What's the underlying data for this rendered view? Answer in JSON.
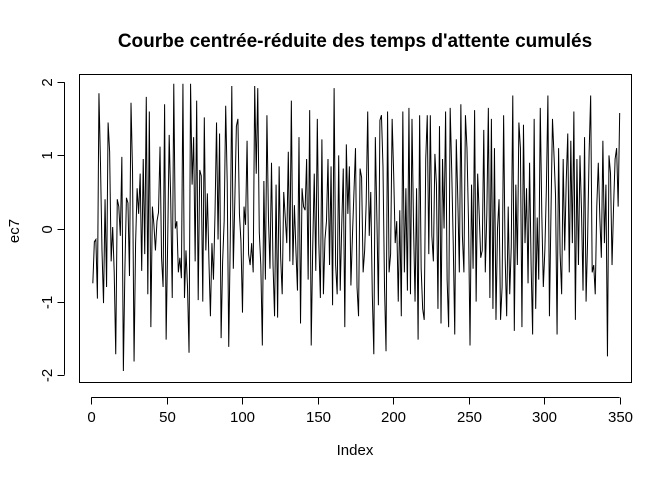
{
  "chart_data": {
    "type": "line",
    "title": "Courbe centrée-réduite des temps d'attente cumulés",
    "xlabel": "Index",
    "ylabel": "ec7",
    "xlim": [
      -7.5,
      357.5
    ],
    "ylim": [
      -2.1,
      2.1
    ],
    "x_ticks": [
      0,
      50,
      100,
      150,
      200,
      250,
      300,
      350
    ],
    "y_ticks": [
      -2,
      -1,
      0,
      1,
      2
    ],
    "x_tick_labels": [
      "0",
      "50",
      "100",
      "150",
      "200",
      "250",
      "300",
      "350"
    ],
    "y_tick_labels": [
      "-2",
      "-1",
      "0",
      "1",
      "2"
    ],
    "grid": false,
    "legend": "none",
    "line_color": "#000000",
    "series": [
      {
        "x_start": 1,
        "x_end": 350,
        "values": [
          -0.75,
          -0.18,
          -0.15,
          -0.96,
          1.85,
          0.9,
          -0.3,
          -1.02,
          0.4,
          -0.8,
          1.45,
          1.05,
          -0.45,
          0.02,
          -0.6,
          -1.72,
          0.4,
          0.3,
          -0.1,
          0.98,
          -1.95,
          -0.55,
          0.42,
          0.35,
          -0.65,
          1.72,
          0.78,
          -1.82,
          -0.2,
          0.55,
          0.2,
          0.75,
          -0.58,
          0.95,
          -0.35,
          1.8,
          -0.9,
          1.6,
          -1.35,
          0.3,
          0.05,
          -0.3,
          0.1,
          0.22,
          1.12,
          -0.4,
          -0.8,
          1.7,
          -1.52,
          -0.2,
          1.28,
          0.4,
          -0.95,
          1.98,
          0.0,
          0.1,
          -0.6,
          -0.4,
          -0.68,
          1.98,
          -0.95,
          -0.3,
          -0.8,
          -1.7,
          1.98,
          0.6,
          1.25,
          -0.45,
          1.75,
          -0.98,
          0.8,
          0.72,
          -1.0,
          1.52,
          -0.3,
          0.48,
          -0.42,
          -1.2,
          -0.2,
          -0.7,
          0.2,
          1.45,
          -0.15,
          1.3,
          -1.5,
          -0.45,
          0.1,
          1.68,
          0.62,
          -1.62,
          -0.15,
          1.95,
          -0.55,
          0.4,
          1.4,
          1.5,
          0.2,
          -0.18,
          -1.15,
          0.3,
          0.05,
          1.2,
          -0.35,
          -0.5,
          -0.2,
          -0.6,
          1.95,
          0.75,
          1.92,
          -0.05,
          -0.5,
          -1.6,
          0.65,
          -0.7,
          1.55,
          0.15,
          -0.55,
          0.9,
          -0.5,
          -1.2,
          0.6,
          -1.22,
          0.85,
          -0.4,
          -0.9,
          0.5,
          0.15,
          -0.2,
          1.05,
          -0.45,
          1.75,
          -0.5,
          0.32,
          -0.3,
          -0.85,
          1.25,
          -1.3,
          0.55,
          0.3,
          0.25,
          0.95,
          -0.7,
          1.62,
          -1.6,
          -0.25,
          0.75,
          -0.58,
          1.5,
          -0.2,
          -0.95,
          1.22,
          -0.9,
          -0.15,
          0.1,
          0.95,
          -0.5,
          0.85,
          -1.05,
          1.92,
          -0.5,
          -0.9,
          1.0,
          -0.85,
          0.05,
          0.82,
          -1.35,
          1.15,
          0.2,
          0.85,
          -0.78,
          -0.1,
          0.5,
          1.1,
          -0.8,
          -1.2,
          0.82,
          0.7,
          -0.6,
          -0.3,
          0.35,
          1.6,
          -0.1,
          0.5,
          -0.9,
          -1.72,
          1.25,
          0.15,
          -1.05,
          1.48,
          1.55,
          0.85,
          -0.8,
          -1.68,
          1.6,
          -0.6,
          -0.35,
          1.5,
          0.75,
          -0.2,
          0.1,
          -1.0,
          0.25,
          -1.2,
          1.6,
          -0.6,
          0.55,
          -0.85,
          1.65,
          -0.9,
          1.5,
          0.05,
          -1.0,
          0.55,
          -1.52,
          1.55,
          -0.55,
          -1.1,
          -1.25,
          0.95,
          1.55,
          -0.35,
          1.55,
          -0.1,
          -0.45,
          1.02,
          0.6,
          -1.1,
          1.4,
          -1.3,
          0.95,
          0.0,
          1.6,
          -0.7,
          -1.35,
          1.65,
          0.8,
          -0.2,
          -1.45,
          1.22,
          0.4,
          -0.6,
          1.7,
          -0.1,
          -0.6,
          1.55,
          1.1,
          0.1,
          -1.6,
          0.6,
          -0.55,
          1.62,
          -1.0,
          0.75,
          0.2,
          -0.4,
          -0.3,
          1.35,
          -0.6,
          0.2,
          1.65,
          -0.95,
          1.5,
          -1.1,
          1.1,
          -1.25,
          0.0,
          0.4,
          -1.25,
          -0.8,
          1.55,
          -0.4,
          -1.2,
          0.3,
          -0.9,
          -0.25,
          1.82,
          -1.4,
          0.6,
          -0.5,
          1.45,
          1.1,
          -1.35,
          1.42,
          -0.2,
          0.55,
          -0.75,
          0.9,
          -0.5,
          -1.45,
          1.5,
          -1.1,
          0.15,
          -0.7,
          1.65,
          0.2,
          -0.8,
          -0.3,
          0.55,
          1.82,
          -1.2,
          0.2,
          1.5,
          1.0,
          0.45,
          -1.45,
          1.1,
          -0.35,
          -0.9,
          0.95,
          -0.3,
          0.65,
          1.3,
          -0.6,
          1.2,
          -0.2,
          1.6,
          -1.25,
          0.95,
          -0.5,
          1.0,
          0.25,
          -0.85,
          1.25,
          -1.0,
          -0.15,
          1.05,
          1.82,
          -0.6,
          -0.5,
          -0.9,
          0.3,
          0.9,
          0.15,
          -0.4,
          1.2,
          -0.2,
          0.6,
          -1.75,
          1.0,
          0.75,
          -0.5,
          0.3,
          0.95,
          1.1,
          0.3,
          1.58
        ]
      }
    ]
  }
}
